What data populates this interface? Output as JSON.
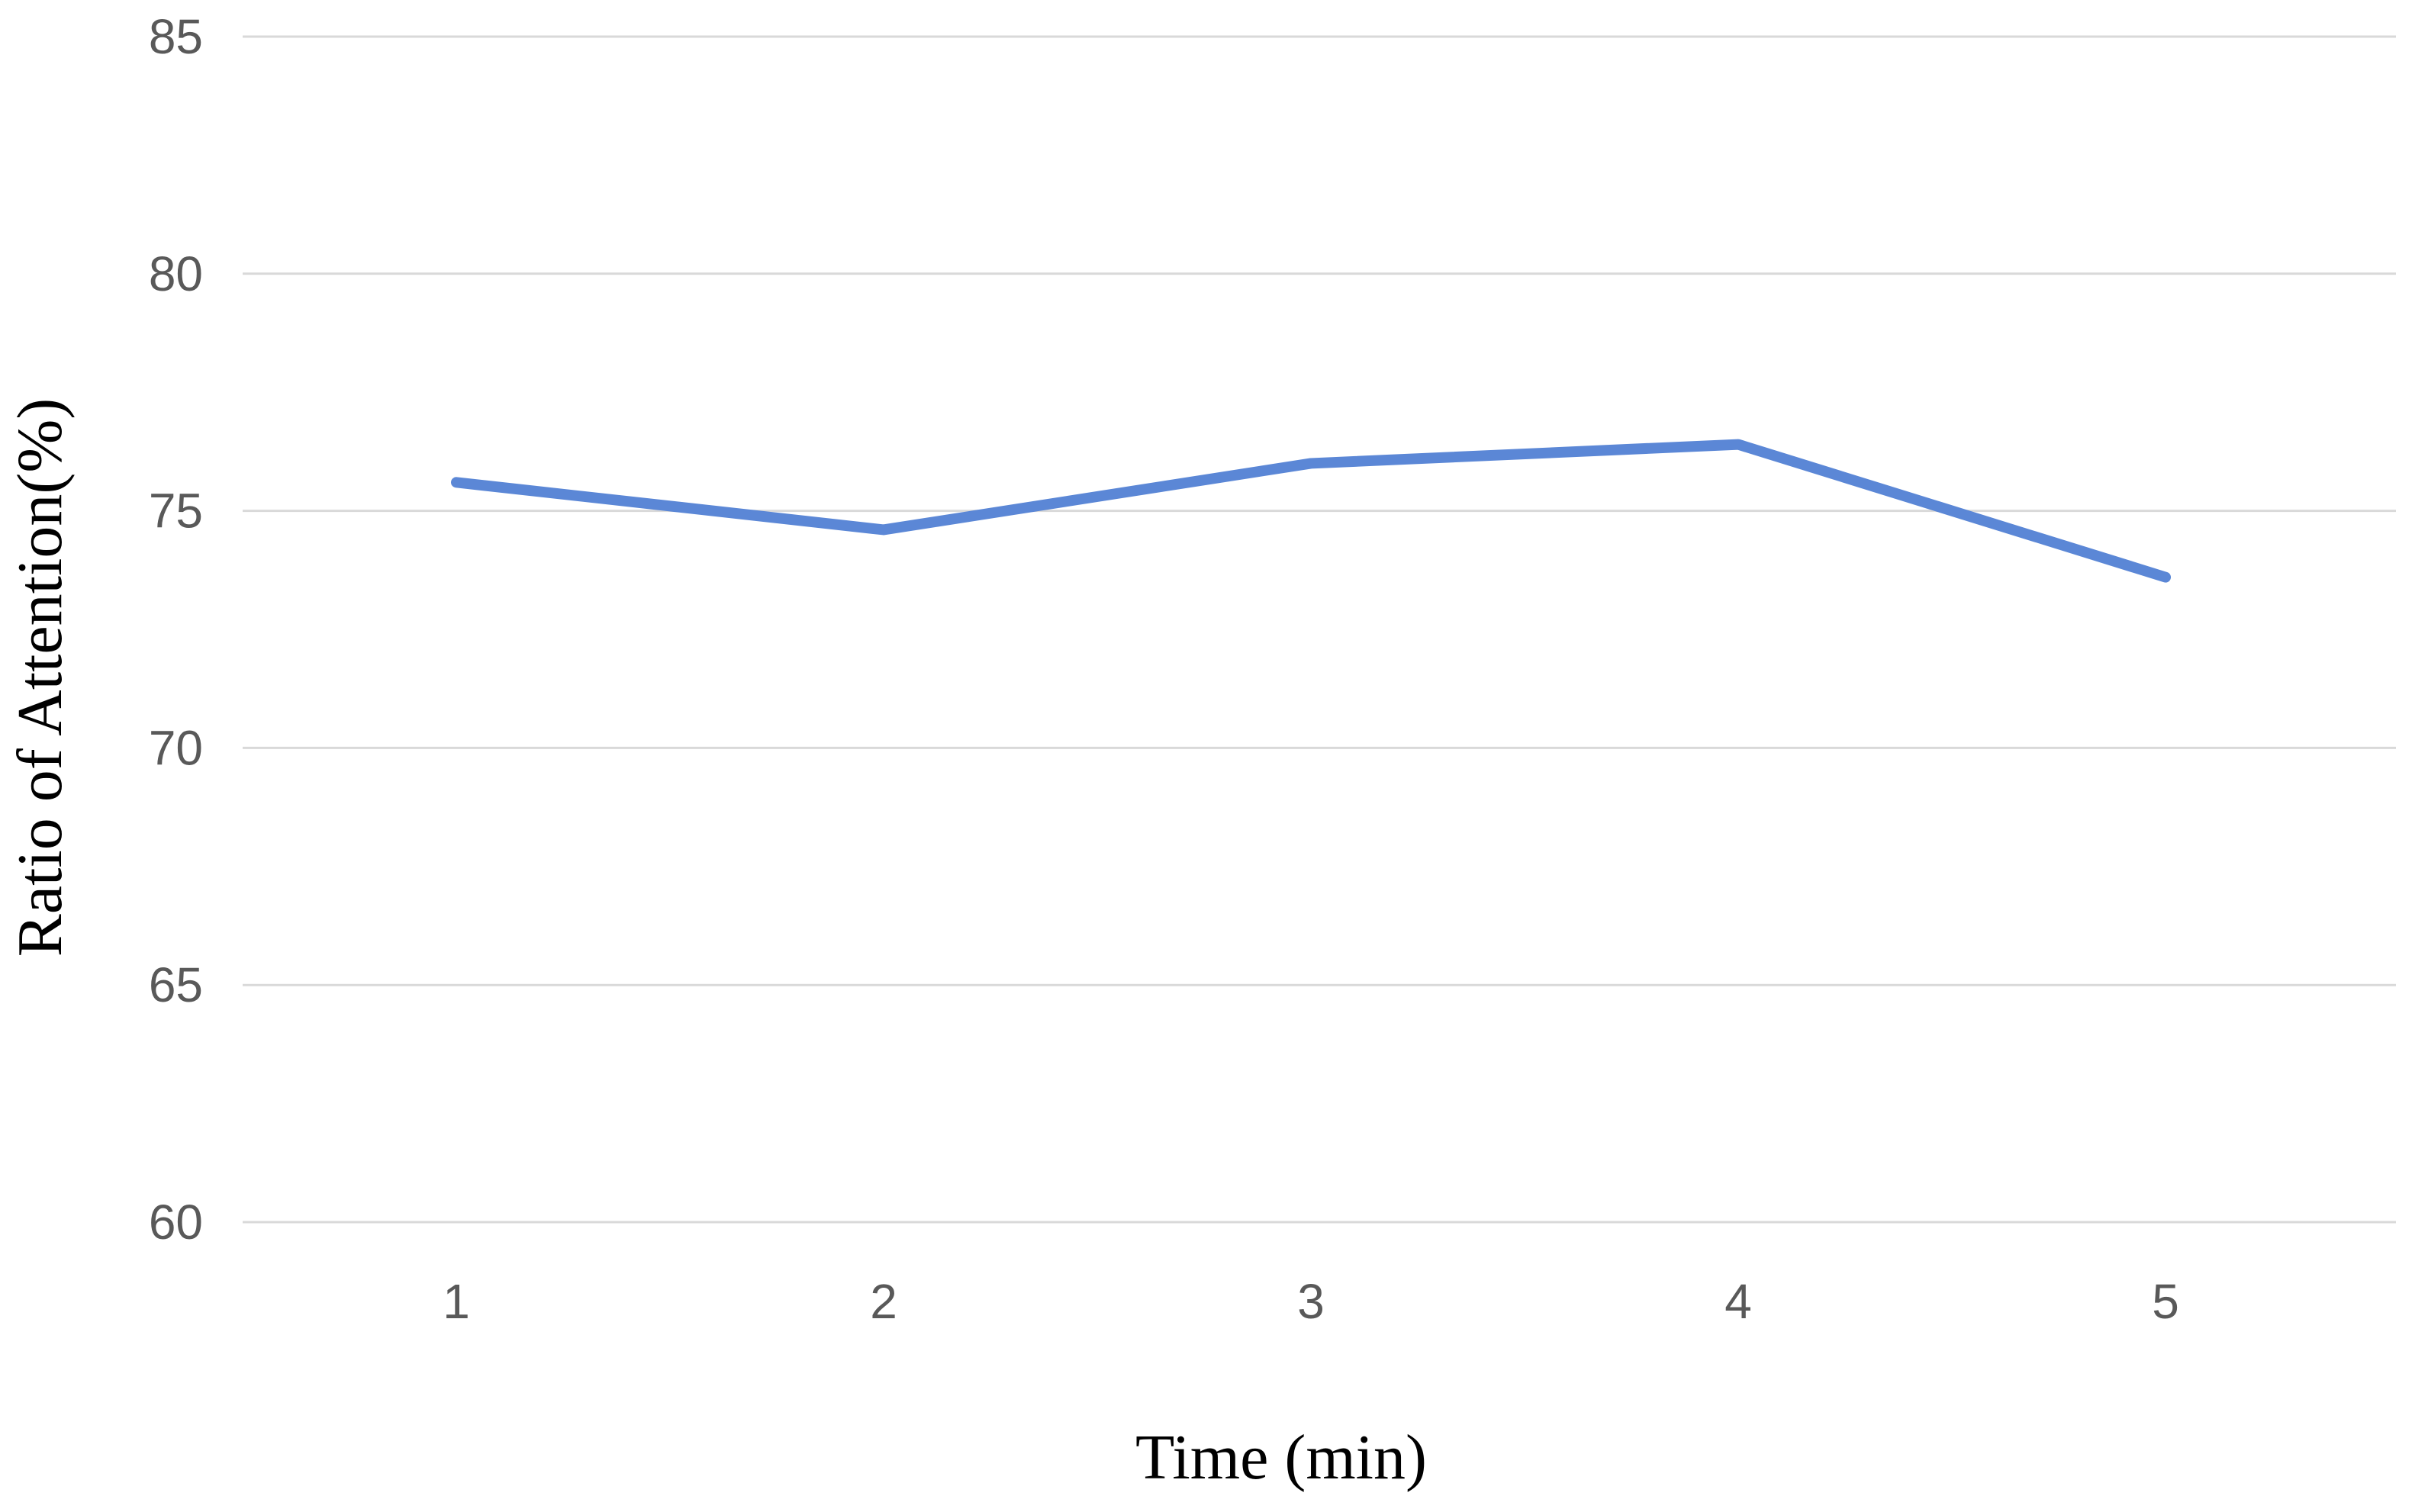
{
  "chart_data": {
    "type": "line",
    "title": "",
    "xlabel": "Time (min)",
    "ylabel": "Ratio of Attention(%)",
    "x": [
      1,
      2,
      3,
      4,
      5
    ],
    "x_tick_labels": [
      "1",
      "2",
      "3",
      "4",
      "5"
    ],
    "y_tick_labels": [
      "60",
      "65",
      "70",
      "75",
      "80",
      "85"
    ],
    "y_ticks": [
      60,
      65,
      70,
      75,
      80,
      85
    ],
    "ylim": [
      60,
      85
    ],
    "grid": true,
    "legend": "none",
    "series": [
      {
        "values": [
          75.6,
          74.6,
          76.0,
          76.4,
          73.6
        ],
        "color": "#5b87d6"
      }
    ]
  }
}
